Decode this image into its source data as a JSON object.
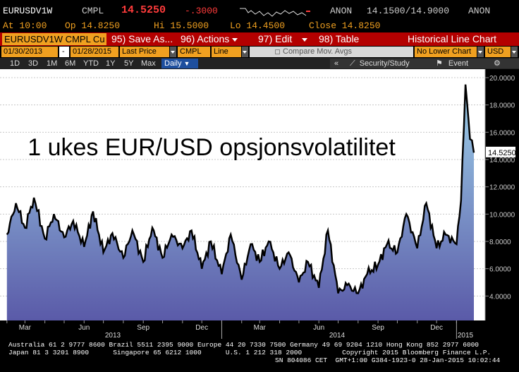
{
  "header": {
    "ticker": "EURUSDV1W",
    "source": "CMPL",
    "last": "14.5250",
    "change": "-.3000",
    "pricing": "ANON",
    "bid_ask": "14.1500/14.9000",
    "pricing2": "ANON",
    "at": "At 10:00",
    "open": "Op 14.8250",
    "high": "Hi 15.5000",
    "low": "Lo 14.4500",
    "close": "Close 14.8250"
  },
  "toolbar": {
    "security": "EURUSDV1W CMPL Cu",
    "save_as": "95) Save As...",
    "actions": "96) Actions",
    "edit": "97) Edit",
    "table": "98) Table",
    "view_title": "Historical Line Chart"
  },
  "settings": {
    "start_date": "01/30/2013",
    "dash": "-",
    "end_date": "01/28/2015",
    "field": "Last Price",
    "source": "CMPL",
    "style": "Line",
    "compare": "Compare Mov. Avgs",
    "lower_chart": "No Lower Chart",
    "currency": "USD"
  },
  "range_bar": {
    "ranges": [
      "1D",
      "3D",
      "1M",
      "6M",
      "YTD",
      "1Y",
      "5Y",
      "Max"
    ],
    "period": "Daily",
    "collapse": "«",
    "security_study": "Security/Study",
    "event": "Event"
  },
  "chart_data": {
    "type": "area",
    "title": "1 ukes EUR/USD opsjonsvolatilitet",
    "ylim": [
      2.0,
      20.0
    ],
    "y_ticks": [
      "20.0000",
      "18.0000",
      "16.0000",
      "14.0000",
      "12.0000",
      "10.0000",
      "8.0000",
      "6.0000",
      "4.0000"
    ],
    "last_value_label": "14.5250",
    "x_month_labels": [
      "Mar",
      "Jun",
      "Sep",
      "Dec",
      "Mar",
      "Jun",
      "Sep",
      "Dec"
    ],
    "x_year_labels": [
      "2013",
      "2014",
      "2015"
    ],
    "x_start": "2013-01-30",
    "x_end": "2015-01-28",
    "series": [
      {
        "x": [
          "2013-02-01",
          "2013-02-15",
          "2013-03-01",
          "2013-03-15",
          "2013-04-01",
          "2013-04-15",
          "2013-05-01",
          "2013-05-15",
          "2013-06-01",
          "2013-06-15",
          "2013-07-01",
          "2013-07-15",
          "2013-08-01",
          "2013-08-15",
          "2013-09-01",
          "2013-09-15",
          "2013-10-01",
          "2013-10-15",
          "2013-11-01",
          "2013-11-15",
          "2013-12-01",
          "2013-12-15",
          "2014-01-01",
          "2014-01-15",
          "2014-02-01",
          "2014-02-15",
          "2014-03-01",
          "2014-03-15",
          "2014-04-01",
          "2014-04-15",
          "2014-05-01",
          "2014-05-15",
          "2014-06-01",
          "2014-06-15",
          "2014-07-01",
          "2014-07-15",
          "2014-08-01",
          "2014-08-15",
          "2014-09-01",
          "2014-09-15",
          "2014-10-01",
          "2014-10-15",
          "2014-11-01",
          "2014-11-15",
          "2014-12-01",
          "2014-12-15",
          "2015-01-01",
          "2015-01-08",
          "2015-01-15",
          "2015-01-22",
          "2015-01-28"
        ],
        "y": [
          8.5,
          10.8,
          9.0,
          11.2,
          8.2,
          10.0,
          8.3,
          9.5,
          7.6,
          10.2,
          7.2,
          8.6,
          6.8,
          8.8,
          6.5,
          9.0,
          6.8,
          8.5,
          7.5,
          8.8,
          6.0,
          8.0,
          5.6,
          8.5,
          5.2,
          7.8,
          6.5,
          8.0,
          6.0,
          7.2,
          5.0,
          6.5,
          4.6,
          8.8,
          4.2,
          4.8,
          4.2,
          5.6,
          6.3,
          7.8,
          7.2,
          10.0,
          7.5,
          10.8,
          7.5,
          8.5,
          7.8,
          11.0,
          19.5,
          15.5,
          14.5
        ]
      }
    ]
  },
  "footer": {
    "line1": "Australia 61 2 9777 8600 Brazil 5511 2395 9000 Europe 44 20 7330 7500 Germany 49 69 9204 1210 Hong Kong 852 2977 6000",
    "line2": "Japan 81 3 3201 8900      Singapore 65 6212 1000      U.S. 1 212 318 2000          Copyright 2015 Bloomberg Finance L.P.",
    "line3": "SN 804086 CET  GMT+1:00 G384-1923-0 28-Jan-2015 10:02:44"
  },
  "colors": {
    "accent_orange": "#f0a020",
    "toolbar_red": "#b40000",
    "change_red": "#ff3b3b",
    "area_top": "#9ed2ea",
    "area_bottom": "#5a5aa8"
  }
}
